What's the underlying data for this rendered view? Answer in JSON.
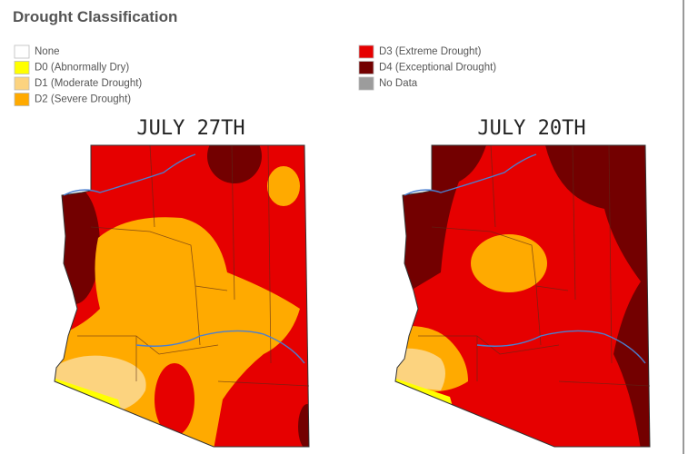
{
  "header": {
    "title": "Drought Classification"
  },
  "legend": [
    {
      "label": "None",
      "color": "#ffffff"
    },
    {
      "label": "D0 (Abnormally Dry)",
      "color": "#ffff00"
    },
    {
      "label": "D1 (Moderate Drought)",
      "color": "#fcd37f"
    },
    {
      "label": "D2 (Severe Drought)",
      "color": "#ffaa00"
    },
    {
      "label": "D3 (Extreme Drought)",
      "color": "#e60000"
    },
    {
      "label": "D4 (Exceptional Drought)",
      "color": "#730000"
    },
    {
      "label": "No Data",
      "color": "#9c9c9c"
    }
  ],
  "maps": [
    {
      "label": "JULY 27TH"
    },
    {
      "label": "JULY 20TH"
    }
  ]
}
